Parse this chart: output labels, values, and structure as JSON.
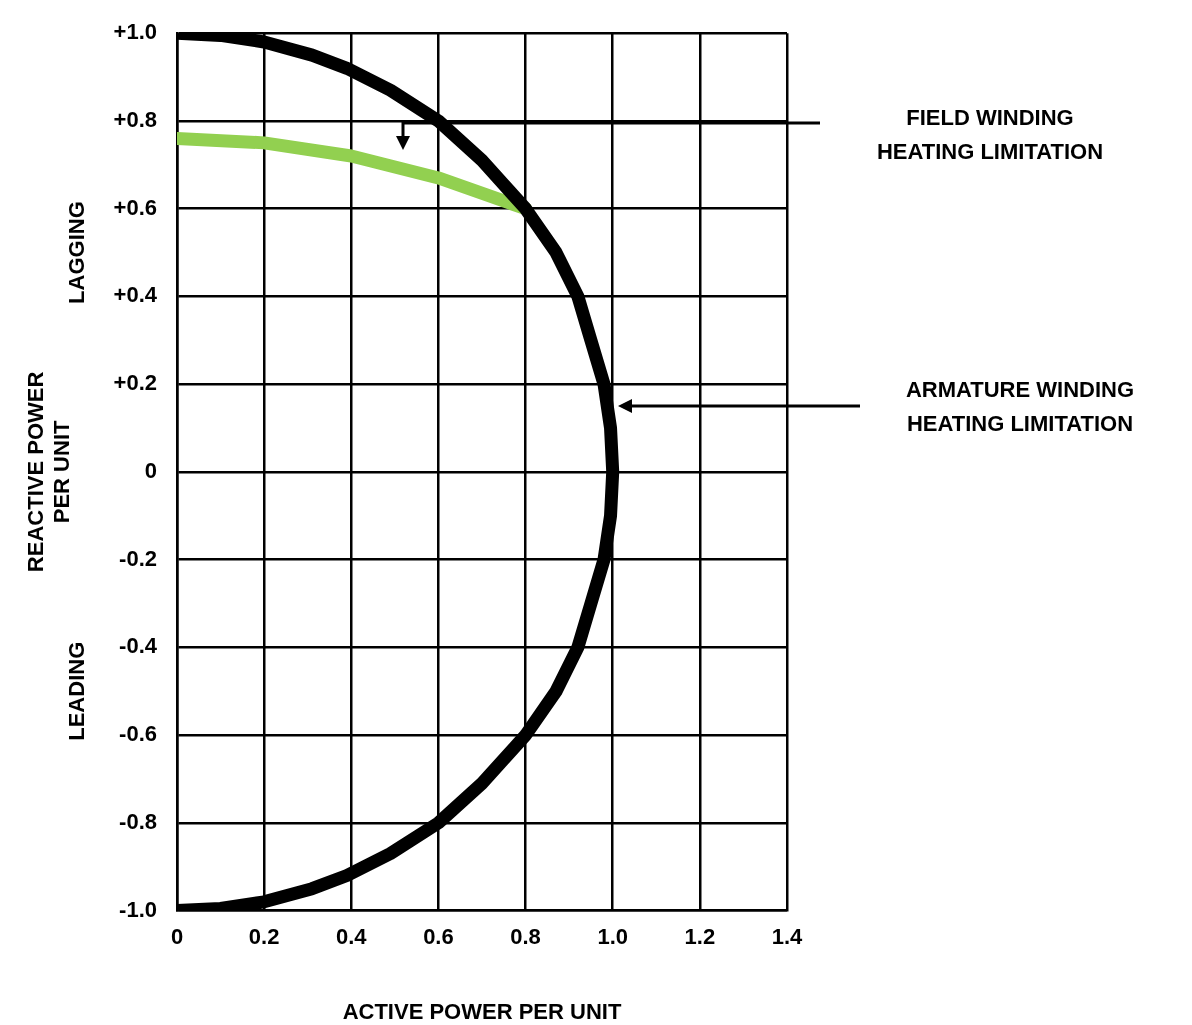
{
  "chart_data": {
    "type": "line",
    "xlabel": "ACTIVE POWER PER UNIT",
    "ylabel": "REACTIVE POWER\nPER UNIT",
    "series": [
      {
        "color": "#000000",
        "x": [
          0,
          0.1,
          0.2,
          0.31,
          0.39,
          0.49,
          0.6,
          0.7,
          0.8,
          0.87,
          0.92,
          0.95,
          0.98,
          0.995,
          1.0,
          0.995,
          0.98,
          0.95,
          0.92,
          0.87,
          0.8,
          0.7,
          0.6,
          0.49,
          0.39,
          0.31,
          0.2,
          0.1,
          0
        ],
        "values": [
          1.0,
          0.995,
          0.98,
          0.95,
          0.92,
          0.87,
          0.8,
          0.71,
          0.6,
          0.5,
          0.4,
          0.3,
          0.2,
          0.1,
          0,
          -0.1,
          -0.2,
          -0.3,
          -0.4,
          -0.5,
          -0.6,
          -0.71,
          -0.8,
          -0.87,
          -0.92,
          -0.95,
          -0.98,
          -0.995,
          -1.0
        ]
      },
      {
        "color": "#92d050",
        "x": [
          0,
          0.2,
          0.4,
          0.6,
          0.8
        ],
        "values": [
          0.76,
          0.75,
          0.72,
          0.67,
          0.6
        ]
      }
    ],
    "xlim": [
      0,
      1.4
    ],
    "xticks": [
      0,
      0.2,
      0.4,
      0.6,
      0.8,
      {
        "value": 1.0,
        "label": "1.0"
      },
      1.2,
      1.4
    ],
    "ylim": [
      -1.0,
      1.0
    ],
    "yticks": [
      {
        "value": -1.0,
        "label": "-1.0"
      },
      -0.8,
      -0.6,
      -0.4,
      -0.2,
      0,
      {
        "value": 0.2,
        "label": "+0.2"
      },
      {
        "value": 0.4,
        "label": "+0.4"
      },
      {
        "value": 0.6,
        "label": "+0.6"
      },
      {
        "value": 0.8,
        "label": "+0.8"
      },
      {
        "value": 1.0,
        "label": "+1.0"
      }
    ],
    "grid": true,
    "legend": false,
    "marker": "none",
    "line_style": "solid",
    "annotations": [
      "LAGGING",
      "LEADING",
      "FIELD WINDING\nHEATING LIMITATION",
      "ARMATURE WINDING\nHEATING LIMITATION"
    ]
  }
}
